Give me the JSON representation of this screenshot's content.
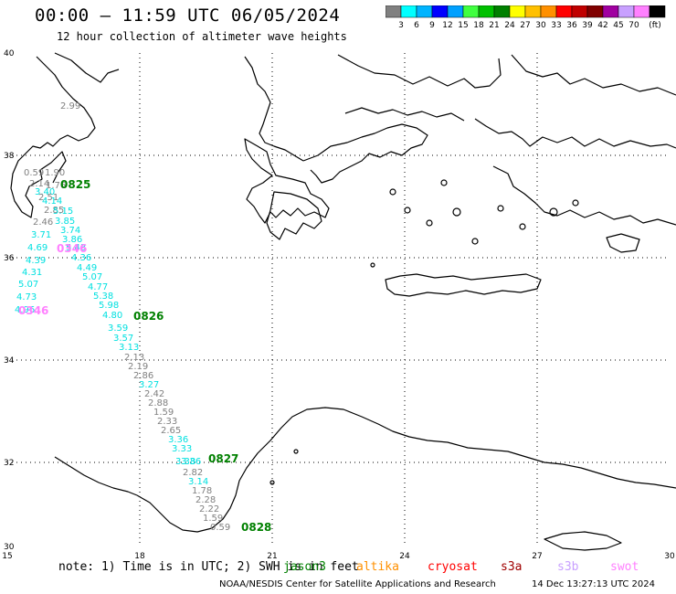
{
  "header": {
    "title": "00:00 – 11:59 UTC 06/05/2024",
    "subtitle": "12 hour collection of altimeter wave heights"
  },
  "legend": {
    "colors": [
      "#808080",
      "#00ffff",
      "#00b4ff",
      "#0000ff",
      "#00a0ff",
      "#40ff40",
      "#00c000",
      "#008000",
      "#ffff00",
      "#ffc000",
      "#ff9000",
      "#ff0000",
      "#c00000",
      "#800000",
      "#a000a0",
      "#c8a0ff",
      "#ff80ff",
      "#000000"
    ],
    "labels": [
      "3",
      "6",
      "9",
      "12",
      "15",
      "18",
      "21",
      "24",
      "27",
      "30",
      "33",
      "36",
      "39",
      "42",
      "45",
      "70",
      "(ft)"
    ]
  },
  "axes": {
    "x_ticks": [
      "15",
      "18",
      "21",
      "24",
      "27",
      "30"
    ],
    "y_ticks": [
      "40",
      "38",
      "36",
      "34",
      "32",
      "30"
    ]
  },
  "tracks": {
    "time_labels": [
      {
        "text": "0825",
        "color": "#008000"
      },
      {
        "text": "0346",
        "color": "#ff80ff"
      },
      {
        "text": "0826",
        "color": "#008000"
      },
      {
        "text": "0346",
        "color": "#ff80ff"
      },
      {
        "text": "0827",
        "color": "#008000"
      },
      {
        "text": "0828",
        "color": "#008000"
      }
    ],
    "readings": [
      {
        "v": "2.99",
        "c": "#808080"
      },
      {
        "v": "0.59",
        "c": "#808080"
      },
      {
        "v": "1.90",
        "c": "#808080"
      },
      {
        "v": "2.14",
        "c": "#808080"
      },
      {
        "v": "1.76",
        "c": "#808080"
      },
      {
        "v": "3.40",
        "c": "#00e0e0"
      },
      {
        "v": "2.51",
        "c": "#808080"
      },
      {
        "v": "4.14",
        "c": "#00e0e0"
      },
      {
        "v": "2.85",
        "c": "#808080"
      },
      {
        "v": "5.15",
        "c": "#00e0e0"
      },
      {
        "v": "2.46",
        "c": "#808080"
      },
      {
        "v": "3.85",
        "c": "#00e0e0"
      },
      {
        "v": "3.74",
        "c": "#00e0e0"
      },
      {
        "v": "3.71",
        "c": "#00e0e0"
      },
      {
        "v": "3.86",
        "c": "#00e0e0"
      },
      {
        "v": "4.69",
        "c": "#00e0e0"
      },
      {
        "v": "5.43",
        "c": "#00e0e0"
      },
      {
        "v": "4.39",
        "c": "#00e0e0"
      },
      {
        "v": "4.36",
        "c": "#00e0e0"
      },
      {
        "v": "4.31",
        "c": "#00e0e0"
      },
      {
        "v": "4.49",
        "c": "#00e0e0"
      },
      {
        "v": "5.07",
        "c": "#00e0e0"
      },
      {
        "v": "5.07",
        "c": "#00e0e0"
      },
      {
        "v": "4.77",
        "c": "#00e0e0"
      },
      {
        "v": "4.73",
        "c": "#00e0e0"
      },
      {
        "v": "5.38",
        "c": "#00e0e0"
      },
      {
        "v": "5.98",
        "c": "#00e0e0"
      },
      {
        "v": "4.96",
        "c": "#00e0e0"
      },
      {
        "v": "4.80",
        "c": "#00e0e0"
      },
      {
        "v": "3.59",
        "c": "#00e0e0"
      },
      {
        "v": "3.57",
        "c": "#00e0e0"
      },
      {
        "v": "3.13",
        "c": "#00e0e0"
      },
      {
        "v": "2.13",
        "c": "#808080"
      },
      {
        "v": "2.19",
        "c": "#808080"
      },
      {
        "v": "2.86",
        "c": "#808080"
      },
      {
        "v": "3.27",
        "c": "#00e0e0"
      },
      {
        "v": "2.42",
        "c": "#808080"
      },
      {
        "v": "2.88",
        "c": "#808080"
      },
      {
        "v": "1.59",
        "c": "#808080"
      },
      {
        "v": "2.33",
        "c": "#808080"
      },
      {
        "v": "2.65",
        "c": "#808080"
      },
      {
        "v": "3.36",
        "c": "#00e0e0"
      },
      {
        "v": "3.33",
        "c": "#00e0e0"
      },
      {
        "v": "3.38",
        "c": "#00e0e0"
      },
      {
        "v": "3.36",
        "c": "#00e0e0"
      },
      {
        "v": "2.82",
        "c": "#808080"
      },
      {
        "v": "3.14",
        "c": "#00e0e0"
      },
      {
        "v": "1.78",
        "c": "#808080"
      },
      {
        "v": "2.28",
        "c": "#808080"
      },
      {
        "v": "2.22",
        "c": "#808080"
      },
      {
        "v": "1.59",
        "c": "#808080"
      },
      {
        "v": "0.59",
        "c": "#808080"
      }
    ]
  },
  "footer": {
    "note": "note: 1) Time is in UTC; 2) SWH is in feet",
    "satellites": [
      {
        "name": "jason3",
        "color": "#008000"
      },
      {
        "name": "altika",
        "color": "#ff9000"
      },
      {
        "name": "cryosat",
        "color": "#ff0000"
      },
      {
        "name": "s3a",
        "color": "#a00000"
      },
      {
        "name": "s3b",
        "color": "#c8a0ff"
      },
      {
        "name": "swot",
        "color": "#ff80ff"
      }
    ],
    "credit": "NOAA/NESDIS Center for Satellite Applications and Research",
    "timestamp": "14 Dec 13:27:13 UTC 2024"
  }
}
